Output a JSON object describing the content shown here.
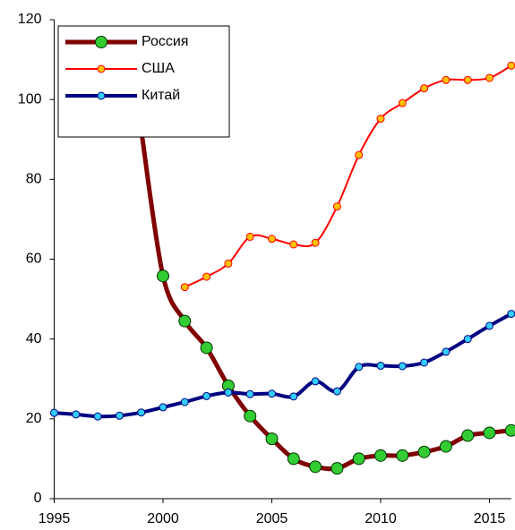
{
  "chart_data": {
    "type": "line",
    "x": [
      1995,
      1996,
      1997,
      1998,
      1999,
      2000,
      2001,
      2002,
      2003,
      2004,
      2005,
      2006,
      2007,
      2008,
      2009,
      2010,
      2011,
      2012,
      2013,
      2014,
      2015,
      2016
    ],
    "series": [
      {
        "name": "Россия",
        "color": "#800000",
        "marker_color": "#33cc33",
        "values": [
          null,
          null,
          null,
          null,
          92.3,
          55.8,
          44.5,
          37.8,
          28.3,
          20.7,
          15,
          10,
          8,
          7.6,
          10,
          10.8,
          10.8,
          11.7,
          13.1,
          15.8,
          16.5,
          17.1
        ]
      },
      {
        "name": "США",
        "color": "#ff0000",
        "marker_color": "#ffc000",
        "values": [
          null,
          null,
          null,
          null,
          null,
          null,
          53,
          55.6,
          58.9,
          65.6,
          65.1,
          63.7,
          64.1,
          73.2,
          86.1,
          95.2,
          99.1,
          102.8,
          104.9,
          104.9,
          105.4,
          108.5
        ]
      },
      {
        "name": "Китай",
        "color": "#000080",
        "marker_color": "#33ccff",
        "values": [
          21.5,
          21.1,
          20.6,
          20.8,
          21.6,
          22.9,
          24.2,
          25.7,
          26.6,
          26.2,
          26.3,
          25.6,
          29.4,
          26.9,
          33,
          33.3,
          33.2,
          34.1,
          36.8,
          40,
          43.3,
          46.3
        ]
      }
    ],
    "xlim": [
      1995,
      2016
    ],
    "xticks": [
      1995,
      2000,
      2005,
      2010,
      2015
    ],
    "ylim": [
      0,
      120
    ],
    "yticks": [
      0,
      20,
      40,
      60,
      80,
      100,
      120
    ],
    "grid": false,
    "legend": "upper left"
  }
}
